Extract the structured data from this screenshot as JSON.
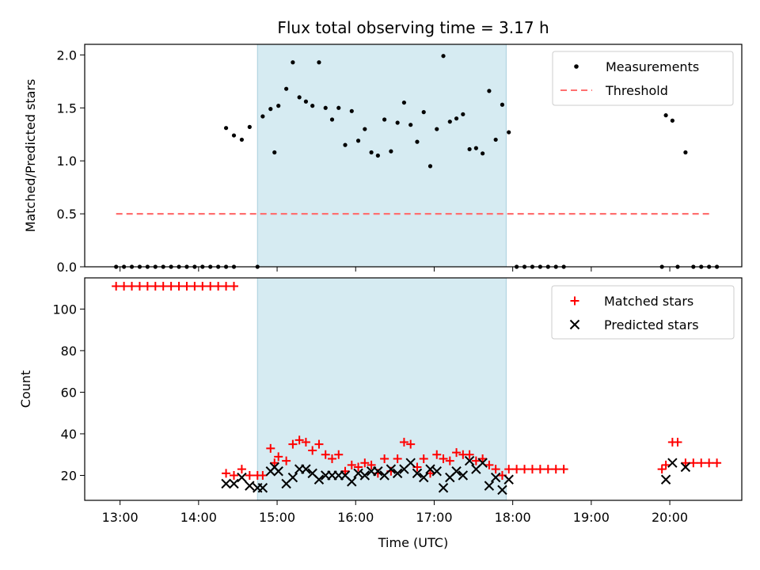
{
  "chart_data": [
    {
      "type": "scatter",
      "title": "Flux total observing time = 3.17 h",
      "xlabel": "",
      "ylabel": "Matched/Predicted stars",
      "ylim": [
        0,
        2.1
      ],
      "yticks": [
        "0.0",
        "0.5",
        "1.0",
        "1.5",
        "2.0"
      ],
      "ytick_values": [
        0,
        0.5,
        1.0,
        1.5,
        2.0
      ],
      "legend_position": "top-right",
      "shaded_span": [
        "14:45",
        "17:55"
      ],
      "series": [
        {
          "name": "Measurements",
          "marker": "dot",
          "color": "#000000",
          "points": [
            [
              "12:57",
              0
            ],
            [
              "13:03",
              0
            ],
            [
              "13:09",
              0
            ],
            [
              "13:15",
              0
            ],
            [
              "13:21",
              0
            ],
            [
              "13:27",
              0
            ],
            [
              "13:33",
              0
            ],
            [
              "13:39",
              0
            ],
            [
              "13:45",
              0
            ],
            [
              "13:51",
              0
            ],
            [
              "13:57",
              0
            ],
            [
              "14:03",
              0
            ],
            [
              "14:09",
              0
            ],
            [
              "14:15",
              0
            ],
            [
              "14:21",
              0
            ],
            [
              "14:27",
              0
            ],
            [
              "14:21",
              1.31
            ],
            [
              "14:27",
              1.24
            ],
            [
              "14:33",
              1.2
            ],
            [
              "14:39",
              1.32
            ],
            [
              "14:45",
              0
            ],
            [
              "14:49",
              1.42
            ],
            [
              "14:55",
              1.49
            ],
            [
              "14:58",
              1.08
            ],
            [
              "15:01",
              1.52
            ],
            [
              "15:07",
              1.68
            ],
            [
              "15:12",
              1.93
            ],
            [
              "15:17",
              1.6
            ],
            [
              "15:22",
              1.56
            ],
            [
              "15:27",
              1.52
            ],
            [
              "15:32",
              1.93
            ],
            [
              "15:37",
              1.5
            ],
            [
              "15:42",
              1.39
            ],
            [
              "15:47",
              1.5
            ],
            [
              "15:52",
              1.15
            ],
            [
              "15:57",
              1.47
            ],
            [
              "16:02",
              1.19
            ],
            [
              "16:07",
              1.3
            ],
            [
              "16:12",
              1.08
            ],
            [
              "16:17",
              1.05
            ],
            [
              "16:22",
              1.39
            ],
            [
              "16:27",
              1.09
            ],
            [
              "16:32",
              1.36
            ],
            [
              "16:37",
              1.55
            ],
            [
              "16:42",
              1.34
            ],
            [
              "16:47",
              1.18
            ],
            [
              "16:52",
              1.46
            ],
            [
              "16:57",
              0.95
            ],
            [
              "17:02",
              1.3
            ],
            [
              "17:07",
              1.99
            ],
            [
              "17:12",
              1.37
            ],
            [
              "17:17",
              1.4
            ],
            [
              "17:22",
              1.44
            ],
            [
              "17:27",
              1.11
            ],
            [
              "17:32",
              1.12
            ],
            [
              "17:37",
              1.07
            ],
            [
              "17:42",
              1.66
            ],
            [
              "17:47",
              1.2
            ],
            [
              "17:52",
              1.53
            ],
            [
              "17:57",
              1.27
            ],
            [
              "18:03",
              0
            ],
            [
              "18:09",
              0
            ],
            [
              "18:15",
              0
            ],
            [
              "18:21",
              0
            ],
            [
              "18:27",
              0
            ],
            [
              "18:33",
              0
            ],
            [
              "18:39",
              0
            ],
            [
              "19:54",
              0
            ],
            [
              "19:57",
              1.43
            ],
            [
              "20:02",
              1.38
            ],
            [
              "20:06",
              0
            ],
            [
              "20:12",
              1.08
            ],
            [
              "20:18",
              0
            ],
            [
              "20:24",
              0
            ],
            [
              "20:30",
              0
            ],
            [
              "20:36",
              0
            ]
          ]
        },
        {
          "name": "Threshold",
          "marker": "dashed-line",
          "color": "#ff7070",
          "points": [
            [
              "12:57",
              0.5
            ],
            [
              "20:33",
              0.5
            ]
          ]
        }
      ]
    },
    {
      "type": "scatter",
      "title": "",
      "xlabel": "Time (UTC)",
      "ylabel": "Count",
      "ylim": [
        8,
        115
      ],
      "yticks": [
        "20",
        "40",
        "60",
        "80",
        "100"
      ],
      "ytick_values": [
        20,
        40,
        60,
        80,
        100
      ],
      "xticks": [
        "13:00",
        "14:00",
        "15:00",
        "16:00",
        "17:00",
        "18:00",
        "19:00",
        "20:00"
      ],
      "xlim": [
        "12:33",
        "20:55"
      ],
      "legend_position": "top-right",
      "shaded_span": [
        "14:45",
        "17:55"
      ],
      "series": [
        {
          "name": "Matched stars",
          "marker": "plus",
          "color": "#ff0000",
          "points": [
            [
              "12:57",
              111
            ],
            [
              "13:03",
              111
            ],
            [
              "13:09",
              111
            ],
            [
              "13:15",
              111
            ],
            [
              "13:21",
              111
            ],
            [
              "13:27",
              111
            ],
            [
              "13:33",
              111
            ],
            [
              "13:39",
              111
            ],
            [
              "13:45",
              111
            ],
            [
              "13:51",
              111
            ],
            [
              "13:57",
              111
            ],
            [
              "14:03",
              111
            ],
            [
              "14:09",
              111
            ],
            [
              "14:15",
              111
            ],
            [
              "14:21",
              111
            ],
            [
              "14:27",
              111
            ],
            [
              "14:21",
              21
            ],
            [
              "14:27",
              20
            ],
            [
              "14:33",
              23
            ],
            [
              "14:39",
              20
            ],
            [
              "14:45",
              20
            ],
            [
              "14:49",
              20
            ],
            [
              "14:55",
              33
            ],
            [
              "14:58",
              26
            ],
            [
              "15:01",
              29
            ],
            [
              "15:07",
              27
            ],
            [
              "15:12",
              35
            ],
            [
              "15:17",
              37
            ],
            [
              "15:22",
              36
            ],
            [
              "15:27",
              32
            ],
            [
              "15:32",
              35
            ],
            [
              "15:37",
              30
            ],
            [
              "15:42",
              28
            ],
            [
              "15:47",
              30
            ],
            [
              "15:52",
              22
            ],
            [
              "15:57",
              25
            ],
            [
              "16:02",
              24
            ],
            [
              "16:07",
              26
            ],
            [
              "16:12",
              25
            ],
            [
              "16:17",
              21
            ],
            [
              "16:22",
              28
            ],
            [
              "16:27",
              22
            ],
            [
              "16:32",
              28
            ],
            [
              "16:37",
              36
            ],
            [
              "16:42",
              35
            ],
            [
              "16:47",
              24
            ],
            [
              "16:52",
              28
            ],
            [
              "16:57",
              21
            ],
            [
              "17:02",
              30
            ],
            [
              "17:07",
              28
            ],
            [
              "17:12",
              27
            ],
            [
              "17:17",
              31
            ],
            [
              "17:22",
              30
            ],
            [
              "17:27",
              30
            ],
            [
              "17:32",
              27
            ],
            [
              "17:37",
              28
            ],
            [
              "17:42",
              25
            ],
            [
              "17:47",
              23
            ],
            [
              "17:52",
              20
            ],
            [
              "17:57",
              23
            ],
            [
              "18:03",
              23
            ],
            [
              "18:09",
              23
            ],
            [
              "18:15",
              23
            ],
            [
              "18:21",
              23
            ],
            [
              "18:27",
              23
            ],
            [
              "18:33",
              23
            ],
            [
              "18:39",
              23
            ],
            [
              "19:54",
              23
            ],
            [
              "19:57",
              25
            ],
            [
              "20:02",
              36
            ],
            [
              "20:06",
              36
            ],
            [
              "20:12",
              26
            ],
            [
              "20:18",
              26
            ],
            [
              "20:24",
              26
            ],
            [
              "20:30",
              26
            ],
            [
              "20:36",
              26
            ]
          ]
        },
        {
          "name": "Predicted stars",
          "marker": "x",
          "color": "#000000",
          "points": [
            [
              "14:21",
              16
            ],
            [
              "14:27",
              16
            ],
            [
              "14:33",
              19
            ],
            [
              "14:39",
              15
            ],
            [
              "14:45",
              14
            ],
            [
              "14:49",
              14
            ],
            [
              "14:55",
              22
            ],
            [
              "14:58",
              24
            ],
            [
              "15:01",
              22
            ],
            [
              "15:07",
              16
            ],
            [
              "15:12",
              19
            ],
            [
              "15:17",
              23
            ],
            [
              "15:22",
              23
            ],
            [
              "15:27",
              21
            ],
            [
              "15:32",
              18
            ],
            [
              "15:37",
              20
            ],
            [
              "15:42",
              20
            ],
            [
              "15:47",
              20
            ],
            [
              "15:52",
              20
            ],
            [
              "15:57",
              17
            ],
            [
              "16:02",
              21
            ],
            [
              "16:07",
              20
            ],
            [
              "16:12",
              22
            ],
            [
              "16:17",
              22
            ],
            [
              "16:22",
              20
            ],
            [
              "16:27",
              23
            ],
            [
              "16:32",
              21
            ],
            [
              "16:37",
              23
            ],
            [
              "16:42",
              26
            ],
            [
              "16:47",
              21
            ],
            [
              "16:52",
              19
            ],
            [
              "16:57",
              23
            ],
            [
              "17:02",
              22
            ],
            [
              "17:07",
              14
            ],
            [
              "17:12",
              19
            ],
            [
              "17:17",
              22
            ],
            [
              "17:22",
              20
            ],
            [
              "17:27",
              27
            ],
            [
              "17:32",
              23
            ],
            [
              "17:37",
              26
            ],
            [
              "17:42",
              15
            ],
            [
              "17:47",
              19
            ],
            [
              "17:52",
              13
            ],
            [
              "17:57",
              18
            ],
            [
              "19:57",
              18
            ],
            [
              "20:02",
              26
            ],
            [
              "20:12",
              24
            ]
          ]
        }
      ]
    }
  ]
}
